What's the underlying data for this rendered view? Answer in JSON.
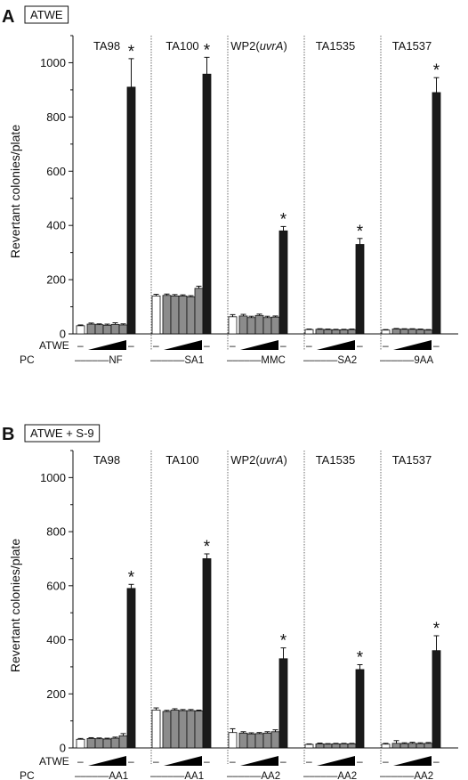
{
  "chart_data": [
    {
      "type": "bar",
      "panel_label": "A",
      "title": "ATWE",
      "ylabel": "Revertant colonies/plate",
      "ylim": [
        0,
        1100
      ],
      "yticks": [
        0,
        200,
        400,
        600,
        800,
        1000
      ],
      "row_labels": {
        "treatment": "ATWE",
        "control": "PC"
      },
      "bar_legend": {
        "negative": "white",
        "treatment": "grey",
        "positive": "black"
      },
      "strains": [
        {
          "name": "TA98",
          "name_plain": "TA98",
          "name_italic": "",
          "name_suffix": "",
          "neg_label": "–",
          "pc_label": "––––––NF",
          "pc_dash_right": "–",
          "values": [
            30,
            36,
            34,
            32,
            35,
            33,
            910
          ],
          "errors": [
            3,
            4,
            3,
            4,
            6,
            4,
            105
          ],
          "significant": [
            false,
            false,
            false,
            false,
            false,
            false,
            true
          ]
        },
        {
          "name": "TA100",
          "name_plain": "TA100",
          "name_italic": "",
          "name_suffix": "",
          "neg_label": "–",
          "pc_label": "––––––SA1",
          "pc_dash_right": "–",
          "values": [
            140,
            142,
            140,
            140,
            137,
            168,
            958
          ],
          "errors": [
            6,
            5,
            5,
            4,
            4,
            8,
            62
          ],
          "significant": [
            false,
            false,
            false,
            false,
            false,
            false,
            true
          ]
        },
        {
          "name": "WP2(uvrA)",
          "name_plain": "WP2(",
          "name_italic": "uvrA",
          "name_suffix": ")",
          "neg_label": "–",
          "pc_label": "––––––MMC",
          "pc_dash_right": "–",
          "values": [
            63,
            66,
            60,
            68,
            60,
            62,
            380
          ],
          "errors": [
            8,
            6,
            5,
            5,
            5,
            4,
            16
          ],
          "significant": [
            false,
            false,
            false,
            false,
            false,
            false,
            true
          ]
        },
        {
          "name": "TA1535",
          "name_plain": "TA1535",
          "name_italic": "",
          "name_suffix": "",
          "neg_label": "–",
          "pc_label": "––––––SA2",
          "pc_dash_right": "–",
          "values": [
            16,
            17,
            16,
            15,
            15,
            16,
            330
          ],
          "errors": [
            2,
            2,
            2,
            2,
            2,
            2,
            22
          ],
          "significant": [
            false,
            false,
            false,
            false,
            false,
            false,
            true
          ]
        },
        {
          "name": "TA1537",
          "name_plain": "TA1537",
          "name_italic": "",
          "name_suffix": "",
          "neg_label": "–",
          "pc_label": "––––––9AA",
          "pc_dash_right": "–",
          "values": [
            14,
            18,
            17,
            17,
            16,
            14,
            890
          ],
          "errors": [
            2,
            2,
            2,
            2,
            2,
            2,
            55
          ],
          "significant": [
            false,
            false,
            false,
            false,
            false,
            false,
            true
          ]
        }
      ]
    },
    {
      "type": "bar",
      "panel_label": "B",
      "title": "ATWE + S-9",
      "ylabel": "Revertant colonies/plate",
      "ylim": [
        0,
        1100
      ],
      "yticks": [
        0,
        200,
        400,
        600,
        800,
        1000
      ],
      "row_labels": {
        "treatment": "ATWE",
        "control": "PC"
      },
      "bar_legend": {
        "negative": "white",
        "treatment": "grey",
        "positive": "black"
      },
      "strains": [
        {
          "name": "TA98",
          "name_plain": "TA98",
          "name_italic": "",
          "name_suffix": "",
          "neg_label": "–",
          "pc_label": "––––––AA1",
          "pc_dash_right": "–",
          "values": [
            32,
            35,
            34,
            33,
            36,
            45,
            590
          ],
          "errors": [
            3,
            3,
            3,
            3,
            4,
            8,
            15
          ],
          "significant": [
            false,
            false,
            false,
            false,
            false,
            false,
            true
          ]
        },
        {
          "name": "TA100",
          "name_plain": "TA100",
          "name_italic": "",
          "name_suffix": "",
          "neg_label": "–",
          "pc_label": "––––––AA1",
          "pc_dash_right": "–",
          "values": [
            140,
            135,
            140,
            138,
            138,
            137,
            700
          ],
          "errors": [
            8,
            4,
            5,
            4,
            4,
            3,
            18
          ],
          "significant": [
            false,
            false,
            false,
            false,
            false,
            false,
            true
          ]
        },
        {
          "name": "WP2(uvrA)",
          "name_plain": "WP2(",
          "name_italic": "uvrA",
          "name_suffix": ")",
          "neg_label": "–",
          "pc_label": "––––––AA2",
          "pc_dash_right": "–",
          "values": [
            57,
            55,
            52,
            53,
            55,
            60,
            330
          ],
          "errors": [
            14,
            5,
            4,
            4,
            5,
            7,
            40
          ],
          "significant": [
            false,
            false,
            false,
            false,
            false,
            false,
            true
          ]
        },
        {
          "name": "TA1535",
          "name_plain": "TA1535",
          "name_italic": "",
          "name_suffix": "",
          "neg_label": "–",
          "pc_label": "––––––AA2",
          "pc_dash_right": "–",
          "values": [
            13,
            15,
            14,
            15,
            15,
            15,
            290
          ],
          "errors": [
            2,
            3,
            2,
            2,
            2,
            2,
            18
          ],
          "significant": [
            false,
            false,
            false,
            false,
            false,
            false,
            true
          ]
        },
        {
          "name": "TA1537",
          "name_plain": "TA1537",
          "name_italic": "",
          "name_suffix": "",
          "neg_label": "–",
          "pc_label": "––––––AA2",
          "pc_dash_right": "–",
          "values": [
            14,
            17,
            16,
            17,
            16,
            17,
            360
          ],
          "errors": [
            3,
            10,
            3,
            4,
            3,
            3,
            55
          ],
          "significant": [
            false,
            false,
            false,
            false,
            false,
            false,
            true
          ]
        }
      ]
    }
  ],
  "significance_marker": "*",
  "colors": {
    "negative": "#ffffff",
    "treatment": "#8c8c8c",
    "positive": "#1a1a1a",
    "axis": "#111111"
  }
}
